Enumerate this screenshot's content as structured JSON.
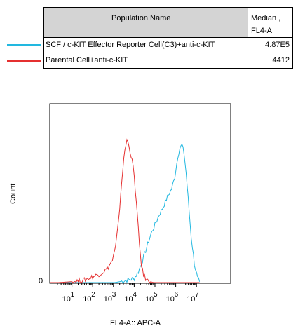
{
  "legend": {
    "header_name": "Population Name",
    "header_median_line1": "Median ,",
    "header_median_line2": "FL4-A",
    "rows": [
      {
        "name": "SCF / c-KIT Effector Reporter Cell(C3)+anti-c-KIT",
        "median": "4.87E5",
        "color": "#22b8e0"
      },
      {
        "name": "Parental Cell+anti-c-KIT",
        "median": "4412",
        "color": "#e53030"
      }
    ]
  },
  "chart_data": {
    "type": "line",
    "xlabel": "FL4-A:: APC-A",
    "ylabel": "Count",
    "x_scale": "log",
    "xlim": [
      0,
      7
    ],
    "x_ticks": [
      {
        "base": "10",
        "exp": "1"
      },
      {
        "base": "10",
        "exp": "2"
      },
      {
        "base": "10",
        "exp": "3"
      },
      {
        "base": "10",
        "exp": "4"
      },
      {
        "base": "10",
        "exp": "5"
      },
      {
        "base": "10",
        "exp": "6"
      },
      {
        "base": "10",
        "exp": "7"
      }
    ],
    "y_tick_label": "0",
    "ylim": [
      0,
      100
    ],
    "series": [
      {
        "color": "#22b8e0",
        "points": [
          [
            -0.1,
            0
          ],
          [
            2.9,
            0
          ],
          [
            3.3,
            1
          ],
          [
            3.7,
            2
          ],
          [
            4.0,
            3
          ],
          [
            4.2,
            7
          ],
          [
            4.4,
            14
          ],
          [
            4.6,
            22
          ],
          [
            4.8,
            30
          ],
          [
            5.0,
            36
          ],
          [
            5.2,
            42
          ],
          [
            5.4,
            47
          ],
          [
            5.6,
            53
          ],
          [
            5.8,
            58
          ],
          [
            5.95,
            65
          ],
          [
            6.1,
            78
          ],
          [
            6.2,
            83
          ],
          [
            6.3,
            85
          ],
          [
            6.4,
            80
          ],
          [
            6.5,
            68
          ],
          [
            6.6,
            52
          ],
          [
            6.75,
            28
          ],
          [
            6.9,
            12
          ],
          [
            7.05,
            3
          ],
          [
            7.2,
            0
          ]
        ]
      },
      {
        "color": "#e53030",
        "points": [
          [
            -0.1,
            0
          ],
          [
            1.0,
            1
          ],
          [
            1.6,
            2
          ],
          [
            2.0,
            4
          ],
          [
            2.4,
            6
          ],
          [
            2.7,
            9
          ],
          [
            2.95,
            14
          ],
          [
            3.1,
            22
          ],
          [
            3.25,
            38
          ],
          [
            3.35,
            55
          ],
          [
            3.45,
            70
          ],
          [
            3.55,
            82
          ],
          [
            3.65,
            88
          ],
          [
            3.75,
            85
          ],
          [
            3.85,
            78
          ],
          [
            3.95,
            72
          ],
          [
            4.05,
            58
          ],
          [
            4.15,
            42
          ],
          [
            4.25,
            24
          ],
          [
            4.35,
            11
          ],
          [
            4.45,
            5
          ],
          [
            4.6,
            2
          ],
          [
            4.8,
            1
          ],
          [
            5.0,
            0
          ],
          [
            7.2,
            0
          ]
        ]
      }
    ]
  }
}
